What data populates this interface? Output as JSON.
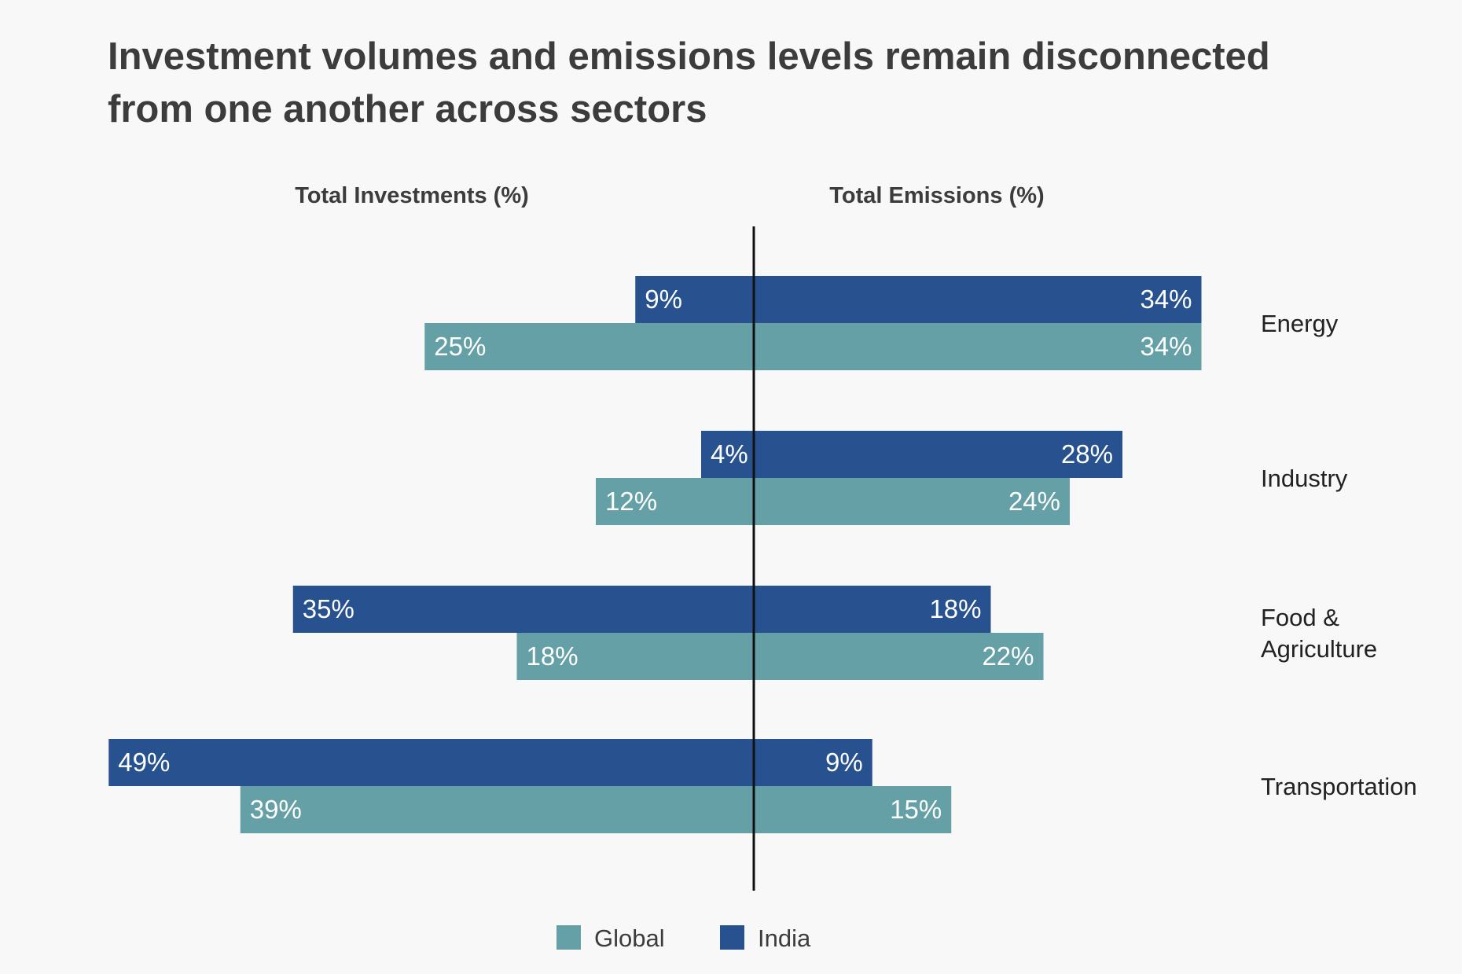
{
  "chart_data": {
    "type": "bar",
    "orientation": "horizontal-diverging",
    "title_lines": [
      "Investment volumes and emissions levels remain disconnected",
      "from one another across sectors"
    ],
    "left_header": "Total Investments (%)",
    "right_header": "Total Emissions (%)",
    "categories": [
      "Energy",
      "Industry",
      "Food & Agriculture",
      "Transportation"
    ],
    "category_label_lines": [
      [
        "Energy"
      ],
      [
        "Industry"
      ],
      [
        "Food &",
        "Agriculture"
      ],
      [
        "Transportation"
      ]
    ],
    "value_suffix": "%",
    "xlim": [
      0,
      50
    ],
    "series": [
      {
        "name": "India",
        "color": "#27528f",
        "investments": [
          9,
          4,
          35,
          49
        ],
        "emissions": [
          34,
          28,
          18,
          9
        ]
      },
      {
        "name": "Global",
        "color": "#64a0a6",
        "investments": [
          25,
          12,
          18,
          39
        ],
        "emissions": [
          34,
          24,
          22,
          15
        ]
      }
    ],
    "legend": {
      "placement": "bottom-center",
      "items": [
        {
          "name": "Global",
          "color": "#64a0a6"
        },
        {
          "name": "India",
          "color": "#27528f"
        }
      ]
    }
  }
}
